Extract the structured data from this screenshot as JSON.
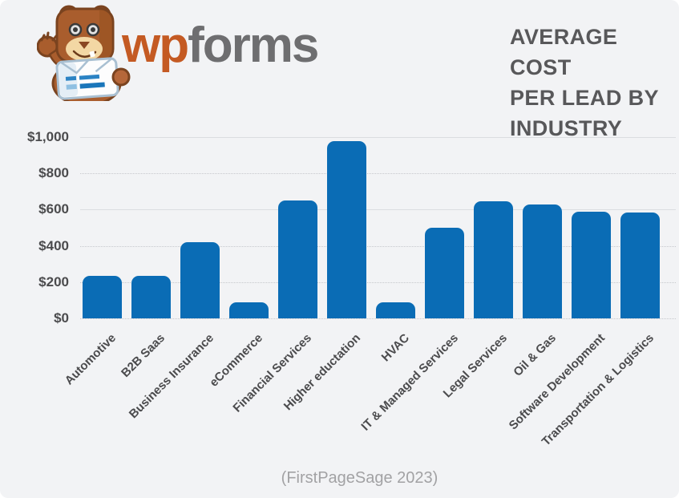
{
  "logo": {
    "wp": "wp",
    "forms": "forms"
  },
  "title": {
    "lines": [
      "AVERAGE COST",
      "PER LEAD BY",
      "INDUSTRY"
    ]
  },
  "source": {
    "label": "(FirstPageSage 2023)"
  },
  "colors": {
    "bar_blue": "#0a6cb5",
    "brand_orange": "#c45a23",
    "brand_gray": "#6e6e70"
  },
  "chart_data": {
    "type": "bar",
    "title": "AVERAGE COST PER LEAD BY INDUSTRY",
    "categories": [
      "Automotive",
      "B2B Saas",
      "Business Insurance",
      "eCommerce",
      "Financial Services",
      "Higher eductation",
      "HVAC",
      "IT & Managed Services",
      "Legal Services",
      "Oil & Gas",
      "Software Development",
      "Transportation & Logistics"
    ],
    "values": [
      235,
      235,
      420,
      90,
      650,
      980,
      90,
      500,
      645,
      630,
      590,
      585
    ],
    "xlabel": "",
    "ylabel": "",
    "ylim": [
      0,
      1000
    ],
    "ytick_values": [
      0,
      200,
      400,
      600,
      800,
      1000
    ],
    "ytick_labels": [
      "$0",
      "$200",
      "$400",
      "$600",
      "$800",
      "$1,000"
    ],
    "bar_color": "#0a6cb5",
    "grid": true,
    "legend_position": "none",
    "source": "(FirstPageSage 2023)"
  }
}
